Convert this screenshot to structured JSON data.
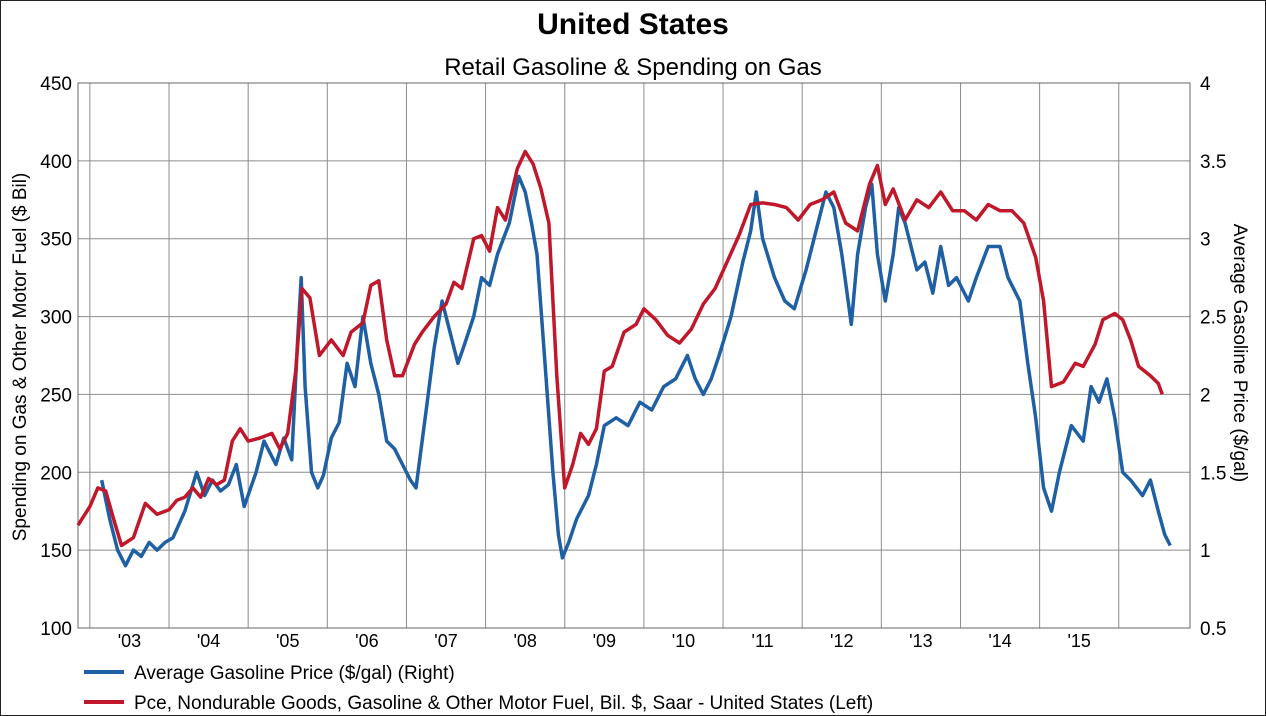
{
  "chart_data": {
    "type": "line",
    "title": "United States",
    "subtitle": "Retail Gasoline & Spending on Gas",
    "ylabel_left": "Spending on Gas & Other Motor Fuel ($ Bil)",
    "ylabel_right": "Average Gasoline Price ($/gal)",
    "ylim_left": [
      100,
      450
    ],
    "ylim_right": [
      0.5,
      4
    ],
    "yticks_left": [
      "100",
      "150",
      "200",
      "250",
      "300",
      "350",
      "400",
      "450"
    ],
    "yticks_right": [
      "0.5",
      "1",
      "1.5",
      "2",
      "2.5",
      "3",
      "3.5",
      "4"
    ],
    "x_ticks": [
      "'03",
      "'04",
      "'05",
      "'06",
      "'07",
      "'08",
      "'09",
      "'10",
      "'11",
      "'12",
      "'13",
      "'14",
      "'15"
    ],
    "grid": true,
    "legend_position": "bottom-left",
    "series": [
      {
        "name": "Average Gasoline Price ($/gal) (Right)",
        "axis": "right",
        "color": "#1f5fa3",
        "points": [
          [
            2003.15,
            1.45
          ],
          [
            2003.25,
            1.2
          ],
          [
            2003.35,
            1.0
          ],
          [
            2003.45,
            0.9
          ],
          [
            2003.55,
            1.0
          ],
          [
            2003.65,
            0.96
          ],
          [
            2003.75,
            1.05
          ],
          [
            2003.85,
            1.0
          ],
          [
            2003.95,
            1.05
          ],
          [
            2004.05,
            1.08
          ],
          [
            2004.2,
            1.25
          ],
          [
            2004.35,
            1.5
          ],
          [
            2004.45,
            1.35
          ],
          [
            2004.55,
            1.45
          ],
          [
            2004.65,
            1.38
          ],
          [
            2004.75,
            1.42
          ],
          [
            2004.85,
            1.55
          ],
          [
            2004.95,
            1.28
          ],
          [
            2005.1,
            1.5
          ],
          [
            2005.2,
            1.7
          ],
          [
            2005.35,
            1.55
          ],
          [
            2005.45,
            1.72
          ],
          [
            2005.55,
            1.58
          ],
          [
            2005.62,
            2.3
          ],
          [
            2005.67,
            2.75
          ],
          [
            2005.72,
            2.05
          ],
          [
            2005.8,
            1.5
          ],
          [
            2005.88,
            1.4
          ],
          [
            2005.95,
            1.48
          ],
          [
            2006.05,
            1.72
          ],
          [
            2006.15,
            1.82
          ],
          [
            2006.25,
            2.2
          ],
          [
            2006.35,
            2.05
          ],
          [
            2006.45,
            2.5
          ],
          [
            2006.55,
            2.2
          ],
          [
            2006.65,
            2.0
          ],
          [
            2006.75,
            1.7
          ],
          [
            2006.85,
            1.65
          ],
          [
            2006.95,
            1.55
          ],
          [
            2007.05,
            1.45
          ],
          [
            2007.12,
            1.4
          ],
          [
            2007.25,
            1.9
          ],
          [
            2007.35,
            2.3
          ],
          [
            2007.45,
            2.6
          ],
          [
            2007.55,
            2.4
          ],
          [
            2007.65,
            2.2
          ],
          [
            2007.72,
            2.3
          ],
          [
            2007.85,
            2.5
          ],
          [
            2007.95,
            2.75
          ],
          [
            2008.05,
            2.7
          ],
          [
            2008.15,
            2.9
          ],
          [
            2008.3,
            3.1
          ],
          [
            2008.42,
            3.4
          ],
          [
            2008.5,
            3.3
          ],
          [
            2008.58,
            3.1
          ],
          [
            2008.65,
            2.9
          ],
          [
            2008.75,
            2.2
          ],
          [
            2008.85,
            1.5
          ],
          [
            2008.92,
            1.1
          ],
          [
            2008.97,
            0.95
          ],
          [
            2009.05,
            1.05
          ],
          [
            2009.15,
            1.2
          ],
          [
            2009.3,
            1.35
          ],
          [
            2009.4,
            1.55
          ],
          [
            2009.5,
            1.8
          ],
          [
            2009.65,
            1.85
          ],
          [
            2009.8,
            1.8
          ],
          [
            2009.95,
            1.95
          ],
          [
            2010.1,
            1.9
          ],
          [
            2010.25,
            2.05
          ],
          [
            2010.4,
            2.1
          ],
          [
            2010.55,
            2.25
          ],
          [
            2010.65,
            2.1
          ],
          [
            2010.75,
            2.0
          ],
          [
            2010.85,
            2.1
          ],
          [
            2010.95,
            2.25
          ],
          [
            2011.1,
            2.5
          ],
          [
            2011.25,
            2.85
          ],
          [
            2011.35,
            3.05
          ],
          [
            2011.42,
            3.3
          ],
          [
            2011.5,
            3.0
          ],
          [
            2011.65,
            2.75
          ],
          [
            2011.78,
            2.6
          ],
          [
            2011.9,
            2.55
          ],
          [
            2012.05,
            2.8
          ],
          [
            2012.2,
            3.1
          ],
          [
            2012.3,
            3.3
          ],
          [
            2012.4,
            3.2
          ],
          [
            2012.5,
            2.9
          ],
          [
            2012.62,
            2.45
          ],
          [
            2012.7,
            2.9
          ],
          [
            2012.8,
            3.2
          ],
          [
            2012.88,
            3.35
          ],
          [
            2012.95,
            2.9
          ],
          [
            2013.05,
            2.6
          ],
          [
            2013.15,
            2.9
          ],
          [
            2013.22,
            3.2
          ],
          [
            2013.3,
            3.1
          ],
          [
            2013.45,
            2.8
          ],
          [
            2013.55,
            2.85
          ],
          [
            2013.65,
            2.65
          ],
          [
            2013.75,
            2.95
          ],
          [
            2013.85,
            2.7
          ],
          [
            2013.95,
            2.75
          ],
          [
            2014.1,
            2.6
          ],
          [
            2014.2,
            2.75
          ],
          [
            2014.35,
            2.95
          ],
          [
            2014.5,
            2.95
          ],
          [
            2014.6,
            2.75
          ],
          [
            2014.75,
            2.6
          ],
          [
            2014.85,
            2.2
          ],
          [
            2014.95,
            1.85
          ],
          [
            2015.05,
            1.4
          ],
          [
            2015.15,
            1.25
          ],
          [
            2015.25,
            1.5
          ],
          [
            2015.4,
            1.8
          ],
          [
            2015.55,
            1.7
          ],
          [
            2015.65,
            2.05
          ],
          [
            2015.75,
            1.95
          ],
          [
            2015.85,
            2.1
          ],
          [
            2015.95,
            1.85
          ],
          [
            2016.05,
            1.5
          ],
          [
            2016.15,
            1.45
          ],
          [
            2016.3,
            1.35
          ],
          [
            2016.4,
            1.45
          ],
          [
            2016.5,
            1.25
          ],
          [
            2016.58,
            1.1
          ],
          [
            2016.65,
            1.03
          ]
        ]
      },
      {
        "name": "Pce, Nondurable Goods, Gasoline & Other Motor Fuel, Bil. $, Saar - United States  (Left)",
        "axis": "left",
        "color": "#c0172b",
        "points": [
          [
            2002.85,
            166
          ],
          [
            2003.0,
            178
          ],
          [
            2003.1,
            190
          ],
          [
            2003.2,
            188
          ],
          [
            2003.3,
            170
          ],
          [
            2003.4,
            153
          ],
          [
            2003.55,
            158
          ],
          [
            2003.7,
            180
          ],
          [
            2003.85,
            173
          ],
          [
            2004.0,
            176
          ],
          [
            2004.1,
            182
          ],
          [
            2004.2,
            184
          ],
          [
            2004.3,
            190
          ],
          [
            2004.4,
            184
          ],
          [
            2004.5,
            196
          ],
          [
            2004.6,
            192
          ],
          [
            2004.7,
            195
          ],
          [
            2004.8,
            220
          ],
          [
            2004.9,
            228
          ],
          [
            2005.0,
            220
          ],
          [
            2005.15,
            222
          ],
          [
            2005.3,
            225
          ],
          [
            2005.4,
            215
          ],
          [
            2005.5,
            225
          ],
          [
            2005.6,
            265
          ],
          [
            2005.68,
            318
          ],
          [
            2005.78,
            312
          ],
          [
            2005.9,
            275
          ],
          [
            2006.05,
            285
          ],
          [
            2006.2,
            275
          ],
          [
            2006.3,
            290
          ],
          [
            2006.45,
            296
          ],
          [
            2006.55,
            320
          ],
          [
            2006.65,
            323
          ],
          [
            2006.75,
            285
          ],
          [
            2006.85,
            262
          ],
          [
            2006.95,
            262
          ],
          [
            2007.1,
            282
          ],
          [
            2007.2,
            290
          ],
          [
            2007.35,
            300
          ],
          [
            2007.5,
            308
          ],
          [
            2007.6,
            322
          ],
          [
            2007.7,
            318
          ],
          [
            2007.85,
            350
          ],
          [
            2007.95,
            352
          ],
          [
            2008.05,
            342
          ],
          [
            2008.15,
            370
          ],
          [
            2008.25,
            362
          ],
          [
            2008.4,
            395
          ],
          [
            2008.5,
            406
          ],
          [
            2008.6,
            398
          ],
          [
            2008.7,
            382
          ],
          [
            2008.8,
            360
          ],
          [
            2008.9,
            262
          ],
          [
            2009.0,
            190
          ],
          [
            2009.1,
            205
          ],
          [
            2009.2,
            225
          ],
          [
            2009.3,
            218
          ],
          [
            2009.4,
            228
          ],
          [
            2009.5,
            265
          ],
          [
            2009.6,
            268
          ],
          [
            2009.75,
            290
          ],
          [
            2009.9,
            295
          ],
          [
            2010.0,
            305
          ],
          [
            2010.15,
            298
          ],
          [
            2010.3,
            288
          ],
          [
            2010.45,
            283
          ],
          [
            2010.6,
            292
          ],
          [
            2010.75,
            308
          ],
          [
            2010.9,
            318
          ],
          [
            2011.05,
            335
          ],
          [
            2011.2,
            352
          ],
          [
            2011.35,
            372
          ],
          [
            2011.5,
            373
          ],
          [
            2011.65,
            372
          ],
          [
            2011.8,
            370
          ],
          [
            2011.95,
            362
          ],
          [
            2012.1,
            372
          ],
          [
            2012.25,
            375
          ],
          [
            2012.4,
            380
          ],
          [
            2012.55,
            360
          ],
          [
            2012.7,
            355
          ],
          [
            2012.85,
            385
          ],
          [
            2012.95,
            397
          ],
          [
            2013.05,
            372
          ],
          [
            2013.15,
            382
          ],
          [
            2013.3,
            362
          ],
          [
            2013.45,
            375
          ],
          [
            2013.6,
            370
          ],
          [
            2013.75,
            380
          ],
          [
            2013.9,
            368
          ],
          [
            2014.05,
            368
          ],
          [
            2014.2,
            362
          ],
          [
            2014.35,
            372
          ],
          [
            2014.5,
            368
          ],
          [
            2014.65,
            368
          ],
          [
            2014.8,
            360
          ],
          [
            2014.95,
            338
          ],
          [
            2015.05,
            310
          ],
          [
            2015.15,
            255
          ],
          [
            2015.3,
            258
          ],
          [
            2015.45,
            270
          ],
          [
            2015.55,
            268
          ],
          [
            2015.7,
            282
          ],
          [
            2015.8,
            298
          ],
          [
            2015.95,
            302
          ],
          [
            2016.05,
            298
          ],
          [
            2016.15,
            285
          ],
          [
            2016.25,
            268
          ],
          [
            2016.4,
            262
          ],
          [
            2016.5,
            257
          ],
          [
            2016.55,
            250
          ]
        ]
      }
    ]
  }
}
